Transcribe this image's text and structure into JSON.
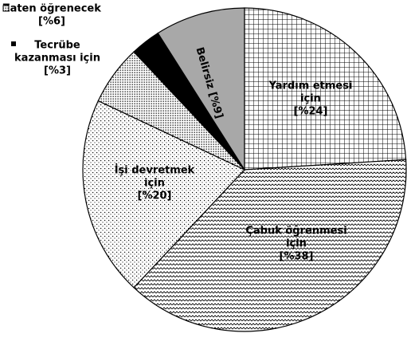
{
  "chart_data": {
    "type": "pie",
    "categories": [
      [
        "Yardım etmesi",
        "için"
      ],
      [
        "Çabuk öğrenmesi",
        "için"
      ],
      [
        "İşi devretmek",
        "için"
      ],
      [
        "Zaten öğrenecek"
      ],
      [
        "Tecrübe",
        "kazanması için"
      ],
      [
        "Belirsiz"
      ]
    ],
    "values": [
      24,
      38,
      20,
      6,
      3,
      9
    ],
    "value_labels": [
      "[%24]",
      "[%38]",
      "[%20]",
      "[%6]",
      "[%3]",
      "[%9]"
    ],
    "colors": [
      "#ffffff",
      "#ffffff",
      "#ffffff",
      "#ffffff",
      "#000000",
      "#a8a8a8"
    ]
  }
}
